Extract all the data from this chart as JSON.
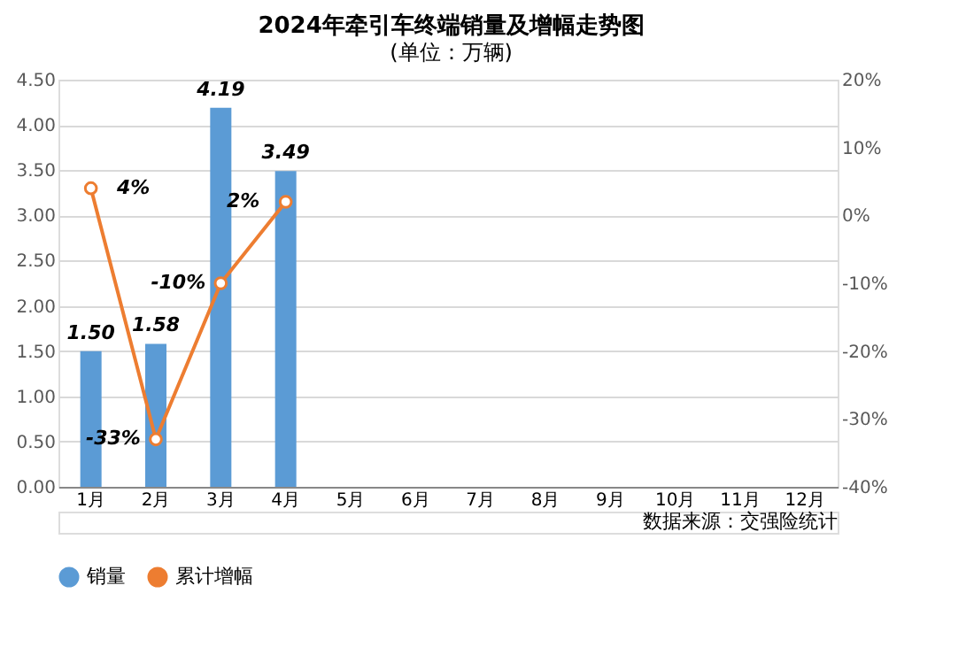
{
  "chart_data": {
    "type": "bar",
    "title": "2024年牵引车终端销量及增幅走势图",
    "subtitle": "(单位：万辆)",
    "categories": [
      "1月",
      "2月",
      "3月",
      "4月",
      "5月",
      "6月",
      "7月",
      "8月",
      "9月",
      "10月",
      "11月",
      "12月"
    ],
    "series": [
      {
        "name": "销量",
        "color": "#5b9bd5",
        "values": [
          1.5,
          1.58,
          4.19,
          3.49,
          null,
          null,
          null,
          null,
          null,
          null,
          null,
          null
        ],
        "value_labels": [
          "1.50",
          "1.58",
          "4.19",
          "3.49",
          null,
          null,
          null,
          null,
          null,
          null,
          null,
          null
        ]
      },
      {
        "name": "累计增幅",
        "type": "line",
        "axis": "y2",
        "color": "#ed7d31",
        "marker": "circle",
        "values": [
          4,
          -33,
          -10,
          2,
          null,
          null,
          null,
          null,
          null,
          null,
          null,
          null
        ],
        "value_labels": [
          "4%",
          "-33%",
          "-10%",
          "2%",
          null,
          null,
          null,
          null,
          null,
          null,
          null,
          null
        ]
      }
    ],
    "ylim": [
      0,
      4.5
    ],
    "yticks": [
      {
        "value": 0,
        "label": "0.00"
      },
      {
        "value": 0.5,
        "label": "0.50"
      },
      {
        "value": 1,
        "label": "1.00"
      },
      {
        "value": 1.5,
        "label": "1.50"
      },
      {
        "value": 2,
        "label": "2.00"
      },
      {
        "value": 2.5,
        "label": "2.50"
      },
      {
        "value": 3,
        "label": "3.00"
      },
      {
        "value": 3.5,
        "label": "3.50"
      },
      {
        "value": 4,
        "label": "4.00"
      },
      {
        "value": 4.5,
        "label": "4.50"
      }
    ],
    "y2lim": [
      -40,
      20
    ],
    "y2ticks": [
      {
        "value": -40,
        "label": "-40%"
      },
      {
        "value": -30,
        "label": "-30%"
      },
      {
        "value": -20,
        "label": "-20%"
      },
      {
        "value": -10,
        "label": "-10%"
      },
      {
        "value": 0,
        "label": "0%"
      },
      {
        "value": 10,
        "label": "10%"
      },
      {
        "value": 20,
        "label": "20%"
      }
    ],
    "grid": "y",
    "legend": "bottom",
    "annotations": [
      "数据来源：交强险统计"
    ]
  }
}
